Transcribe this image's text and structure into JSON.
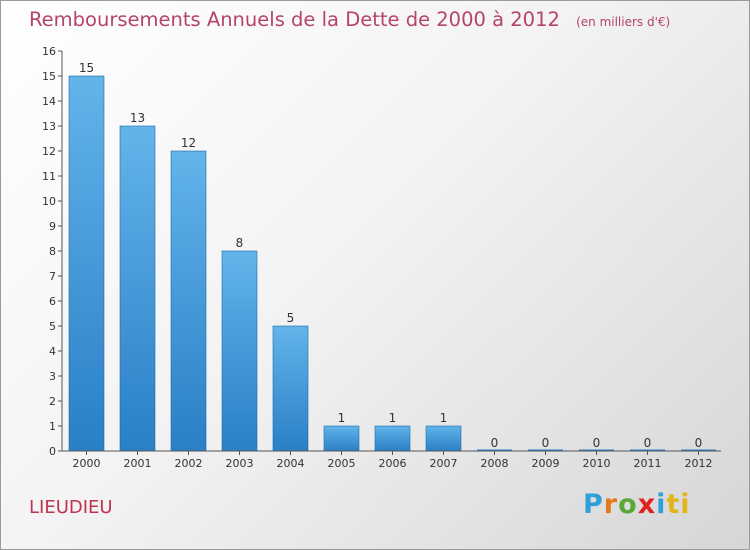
{
  "header": {
    "title": "Remboursements Annuels de la Dette de 2000 à 2012",
    "unit": "(en milliers d'€)"
  },
  "footer": {
    "commune": "LIEUDIEU",
    "brand_letters": [
      "P",
      "r",
      "o",
      "x",
      "i",
      "ti"
    ]
  },
  "colors": {
    "bar_light": "#63b4ea",
    "bar_dark": "#2a7fc6",
    "title": "#b5446a"
  },
  "chart_data": {
    "type": "bar",
    "title": "Remboursements Annuels de la Dette de 2000 à 2012",
    "subtitle": "(en milliers d'€)",
    "xlabel": "",
    "ylabel": "",
    "categories": [
      "2000",
      "2001",
      "2002",
      "2003",
      "2004",
      "2005",
      "2006",
      "2007",
      "2008",
      "2009",
      "2010",
      "2011",
      "2012"
    ],
    "values": [
      15,
      13,
      12,
      8,
      5,
      1,
      1,
      1,
      0,
      0,
      0,
      0,
      0
    ],
    "ylim": [
      0,
      16
    ],
    "yticks": [
      0,
      1,
      2,
      3,
      4,
      5,
      6,
      7,
      8,
      9,
      10,
      11,
      12,
      13,
      14,
      15,
      16
    ],
    "grid": false,
    "legend": "none"
  }
}
